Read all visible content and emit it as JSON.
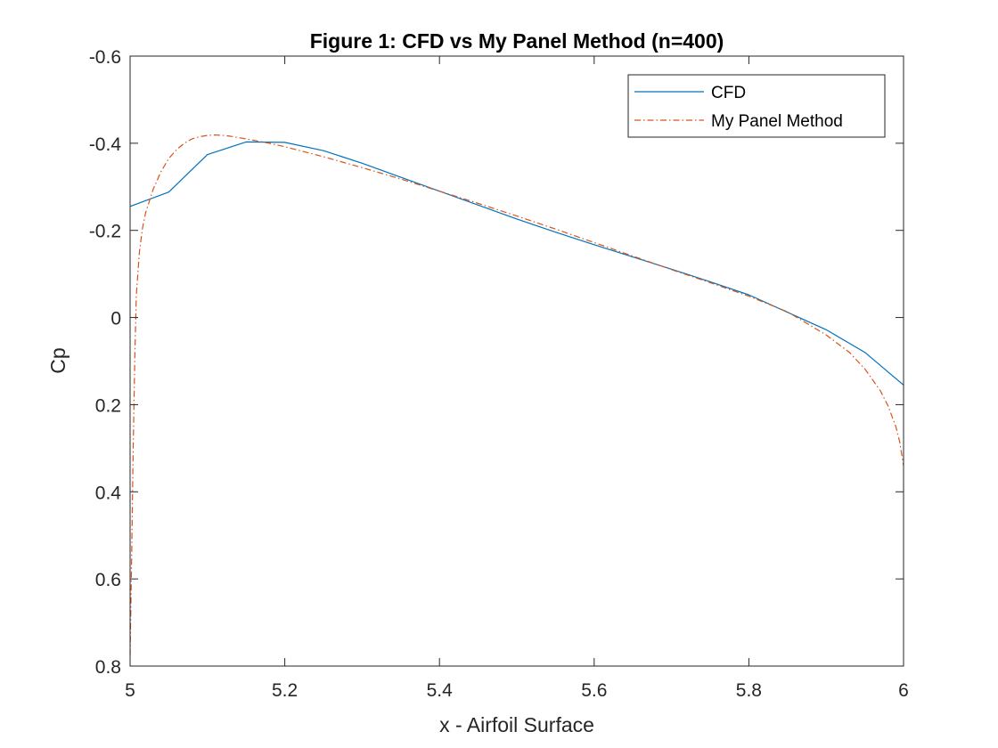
{
  "chart_data": {
    "type": "line",
    "title": "Figure 1: CFD vs My Panel Method (n=400)",
    "xlabel": "x - Airfoil Surface",
    "ylabel": "Cp",
    "xlim": [
      5,
      6
    ],
    "ylim": [
      -0.6,
      0.8
    ],
    "y_axis_reversed": true,
    "grid": false,
    "legend_location": "top-right",
    "x_ticks": [
      5,
      5.2,
      5.4,
      5.6,
      5.8,
      6
    ],
    "x_tick_labels": [
      "5",
      "5.2",
      "5.4",
      "5.6",
      "5.8",
      "6"
    ],
    "y_ticks": [
      -0.6,
      -0.4,
      -0.2,
      0,
      0.2,
      0.4,
      0.6,
      0.8
    ],
    "y_tick_labels": [
      "-0.6",
      "-0.4",
      "-0.2",
      "0",
      "0.2",
      "0.4",
      "0.6",
      "0.8"
    ],
    "series": [
      {
        "name": "CFD",
        "color": "#0072BD",
        "style": "solid",
        "x": [
          5.0,
          5.05,
          5.1,
          5.15,
          5.2,
          5.25,
          5.3,
          5.35,
          5.4,
          5.45,
          5.5,
          5.55,
          5.6,
          5.65,
          5.7,
          5.75,
          5.8,
          5.85,
          5.9,
          5.95,
          6.0
        ],
        "y": [
          -0.255,
          -0.288,
          -0.374,
          -0.403,
          -0.402,
          -0.383,
          -0.354,
          -0.322,
          -0.29,
          -0.258,
          -0.226,
          -0.196,
          -0.167,
          -0.139,
          -0.111,
          -0.082,
          -0.052,
          -0.012,
          0.028,
          0.08,
          0.155
        ]
      },
      {
        "name": "My Panel Method",
        "color": "#D95319",
        "style": "dashdot",
        "x": [
          5.0,
          5.002,
          5.004,
          5.006,
          5.008,
          5.012,
          5.016,
          5.02,
          5.03,
          5.04,
          5.05,
          5.06,
          5.07,
          5.08,
          5.09,
          5.1,
          5.11,
          5.12,
          5.13,
          5.15,
          5.18,
          5.2,
          5.25,
          5.3,
          5.35,
          5.4,
          5.45,
          5.5,
          5.55,
          5.6,
          5.65,
          5.7,
          5.75,
          5.8,
          5.85,
          5.9,
          5.93,
          5.95,
          5.97,
          5.98,
          5.99,
          5.995,
          6.0
        ],
        "y": [
          0.775,
          0.55,
          0.3,
          0.1,
          -0.05,
          -0.15,
          -0.205,
          -0.24,
          -0.295,
          -0.335,
          -0.365,
          -0.385,
          -0.4,
          -0.41,
          -0.415,
          -0.418,
          -0.419,
          -0.418,
          -0.416,
          -0.41,
          -0.4,
          -0.392,
          -0.369,
          -0.344,
          -0.318,
          -0.29,
          -0.262,
          -0.233,
          -0.203,
          -0.172,
          -0.141,
          -0.11,
          -0.08,
          -0.049,
          -0.013,
          0.04,
          0.08,
          0.118,
          0.168,
          0.203,
          0.25,
          0.285,
          0.34
        ]
      }
    ]
  }
}
